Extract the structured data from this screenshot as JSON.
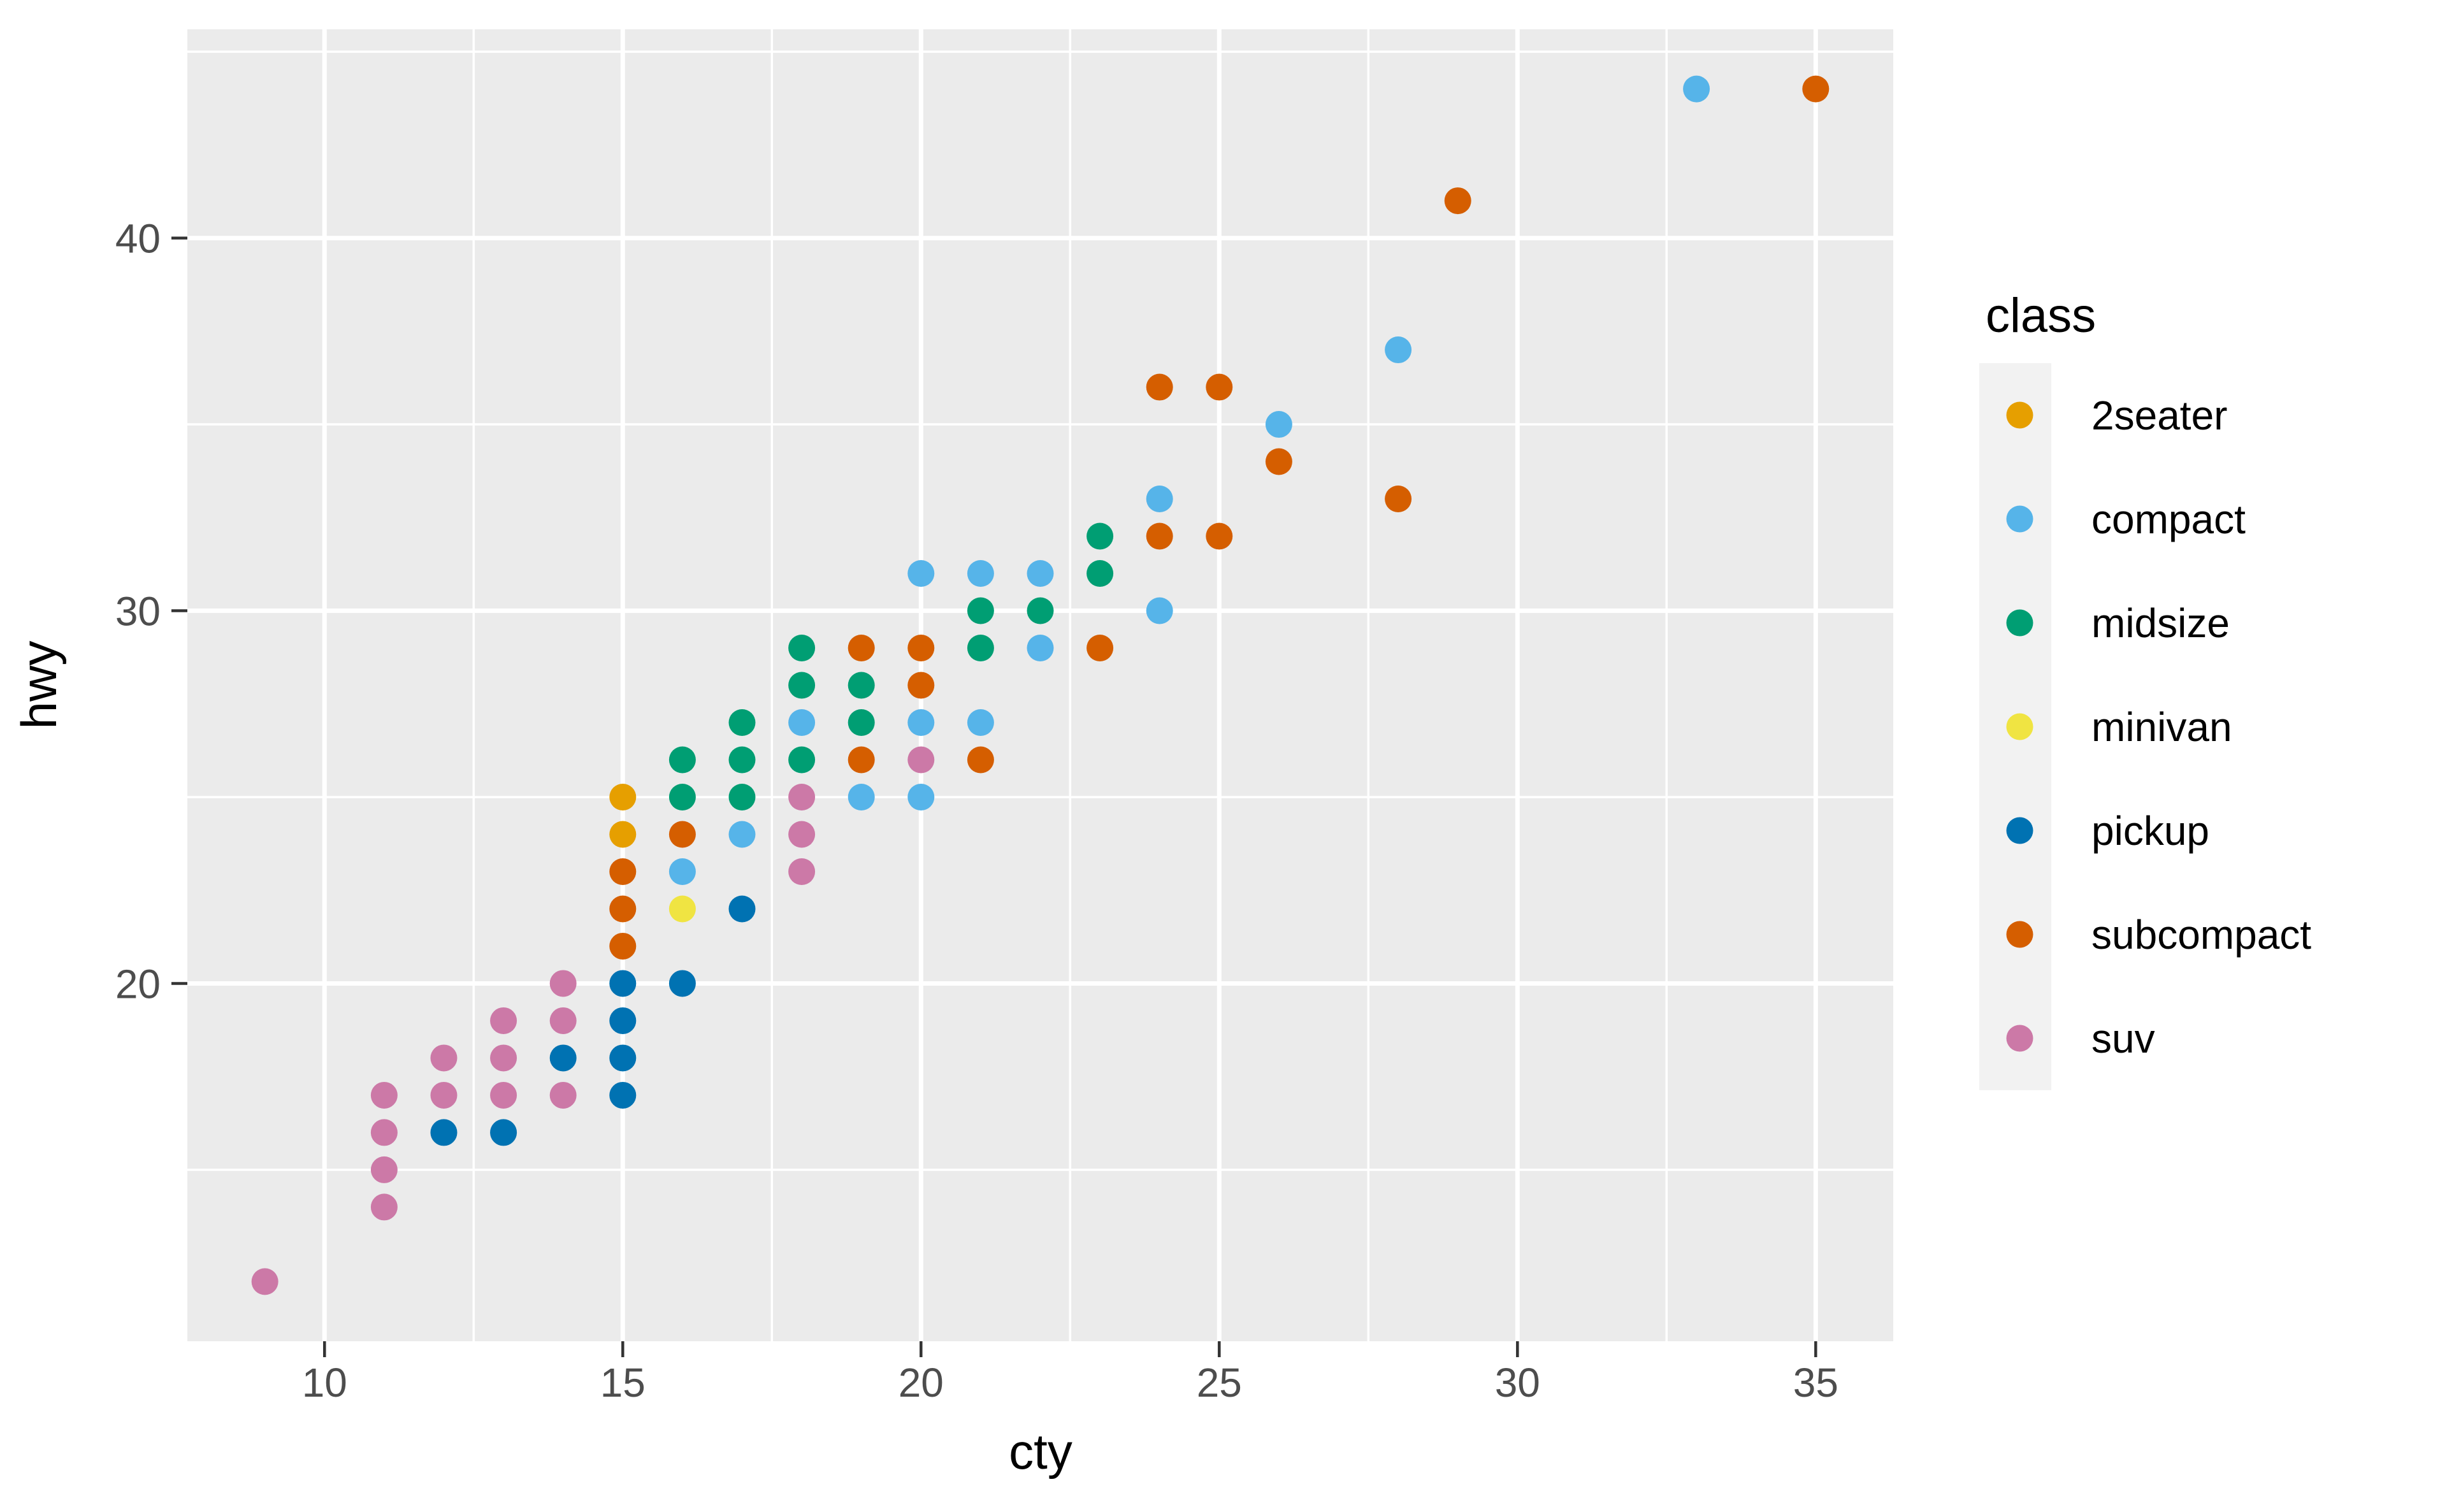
{
  "chart_data": {
    "type": "scatter",
    "title": "",
    "xlabel": "cty",
    "ylabel": "hwy",
    "xlim": [
      7.7,
      36.3
    ],
    "ylim": [
      10.4,
      45.6
    ],
    "x_major_ticks": [
      10,
      15,
      20,
      25,
      30,
      35
    ],
    "y_major_ticks": [
      20,
      30,
      40
    ],
    "x_minor_gridlines": [
      12.5,
      17.5,
      22.5,
      27.5,
      32.5
    ],
    "y_minor_gridlines": [
      15,
      25,
      35,
      45
    ],
    "grid": "on",
    "legend_position": "right",
    "legend_title": "class",
    "series": [
      {
        "name": "2seater",
        "color": "#E69F00",
        "points": [
          [
            15,
            24
          ],
          [
            15,
            25
          ]
        ]
      },
      {
        "name": "compact",
        "color": "#56B4E9",
        "points": [
          [
            16,
            23
          ],
          [
            17,
            24
          ],
          [
            18,
            27
          ],
          [
            19,
            25
          ],
          [
            20,
            25
          ],
          [
            20,
            27
          ],
          [
            20,
            31
          ],
          [
            21,
            27
          ],
          [
            21,
            31
          ],
          [
            22,
            29
          ],
          [
            22,
            31
          ],
          [
            24,
            30
          ],
          [
            24,
            33
          ],
          [
            26,
            35
          ],
          [
            28,
            37
          ],
          [
            33,
            44
          ]
        ]
      },
      {
        "name": "midsize",
        "color": "#009E73",
        "points": [
          [
            16,
            25
          ],
          [
            16,
            26
          ],
          [
            17,
            25
          ],
          [
            17,
            26
          ],
          [
            17,
            27
          ],
          [
            18,
            26
          ],
          [
            18,
            28
          ],
          [
            18,
            29
          ],
          [
            19,
            27
          ],
          [
            19,
            28
          ],
          [
            21,
            29
          ],
          [
            21,
            30
          ],
          [
            22,
            30
          ],
          [
            23,
            31
          ],
          [
            23,
            32
          ]
        ]
      },
      {
        "name": "minivan",
        "color": "#F0E442",
        "points": [
          [
            16,
            22
          ]
        ]
      },
      {
        "name": "pickup",
        "color": "#0072B2",
        "points": [
          [
            12,
            16
          ],
          [
            13,
            16
          ],
          [
            14,
            18
          ],
          [
            15,
            17
          ],
          [
            15,
            18
          ],
          [
            15,
            19
          ],
          [
            15,
            20
          ],
          [
            16,
            20
          ],
          [
            17,
            22
          ]
        ]
      },
      {
        "name": "subcompact",
        "color": "#D55E00",
        "points": [
          [
            15,
            21
          ],
          [
            15,
            22
          ],
          [
            15,
            23
          ],
          [
            16,
            24
          ],
          [
            19,
            26
          ],
          [
            19,
            29
          ],
          [
            20,
            28
          ],
          [
            20,
            29
          ],
          [
            21,
            26
          ],
          [
            23,
            29
          ],
          [
            24,
            32
          ],
          [
            25,
            32
          ],
          [
            24,
            36
          ],
          [
            25,
            36
          ],
          [
            26,
            34
          ],
          [
            28,
            33
          ],
          [
            29,
            41
          ],
          [
            35,
            44
          ]
        ]
      },
      {
        "name": "suv",
        "color": "#CC79A7",
        "points": [
          [
            9,
            12
          ],
          [
            11,
            14
          ],
          [
            11,
            15
          ],
          [
            11,
            16
          ],
          [
            11,
            17
          ],
          [
            12,
            17
          ],
          [
            12,
            18
          ],
          [
            13,
            17
          ],
          [
            13,
            18
          ],
          [
            13,
            19
          ],
          [
            14,
            17
          ],
          [
            14,
            19
          ],
          [
            14,
            20
          ],
          [
            18,
            23
          ],
          [
            18,
            24
          ],
          [
            18,
            25
          ],
          [
            20,
            26
          ]
        ]
      }
    ],
    "style_colors": {
      "panel_background": "#EBEBEB",
      "gridline": "#FFFFFF",
      "tick_mark": "#333333",
      "tick_label": "#4D4D4D",
      "axis_title": "#000000",
      "legend_key_background": "#F2F2F2",
      "figure_background": "#FFFFFF"
    }
  }
}
